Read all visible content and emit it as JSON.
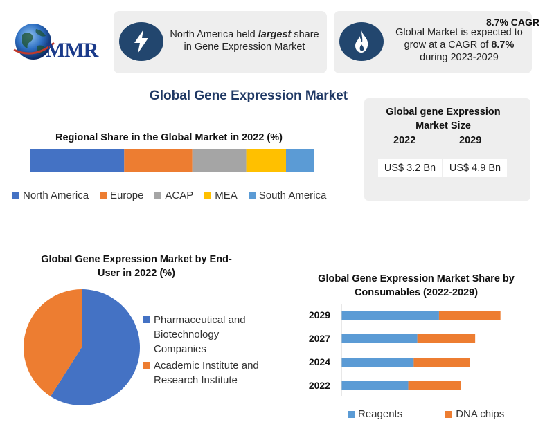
{
  "brand": {
    "logo_text": "MMR"
  },
  "cards": {
    "left": {
      "text_before": "North America held ",
      "text_emphasis": "largest",
      "text_after": " share in Gene Expression Market"
    },
    "right": {
      "badge": "8.7% CAGR",
      "line1": "Global Market is expected to",
      "line2_before": "grow at a CAGR of ",
      "line2_bold": "8.7%",
      "line3": "during 2023-2029"
    }
  },
  "main_title": "Global Gene Expression Market",
  "market_size": {
    "title": "Global gene Expression Market Size",
    "years": [
      "2022",
      "2029"
    ],
    "values": [
      "US$ 3.2 Bn",
      "US$ 4.9 Bn"
    ]
  },
  "colors": {
    "navy": "#22466e",
    "blue": "#4472c4",
    "orange": "#ed7d31",
    "gray": "#a5a5a5",
    "yellow": "#ffc000",
    "lightblue": "#5b9bd5"
  },
  "chart_data": [
    {
      "type": "bar",
      "stacked": true,
      "orientation": "horizontal",
      "title": "Regional Share in the Global Market in 2022 (%)",
      "series": [
        {
          "name": "North America",
          "values": [
            33
          ]
        },
        {
          "name": "Europe",
          "values": [
            24
          ]
        },
        {
          "name": "ACAP",
          "values": [
            19
          ]
        },
        {
          "name": "MEA",
          "values": [
            14
          ]
        },
        {
          "name": "South America",
          "values": [
            10
          ]
        }
      ],
      "legend": "bottom"
    },
    {
      "type": "pie",
      "title": "Global Gene Expression Market by End-User in 2022 (%)",
      "labels": [
        "Pharmaceutical and Biotechnology Companies",
        "Academic Institute and Research Institute"
      ],
      "values": [
        59,
        41
      ],
      "legend": "right"
    },
    {
      "type": "bar",
      "stacked": true,
      "orientation": "horizontal",
      "title": "Global Gene Expression Market Share by Consumables (2022-2029)",
      "categories": [
        "2029",
        "2027",
        "2024",
        "2022"
      ],
      "series": [
        {
          "name": "Reagents",
          "values": [
            2.7,
            2.1,
            2.0,
            1.85
          ]
        },
        {
          "name": "DNA chips",
          "values": [
            1.7,
            1.6,
            1.55,
            1.45
          ]
        }
      ],
      "xlim": [
        0,
        5
      ],
      "legend": "bottom"
    }
  ]
}
